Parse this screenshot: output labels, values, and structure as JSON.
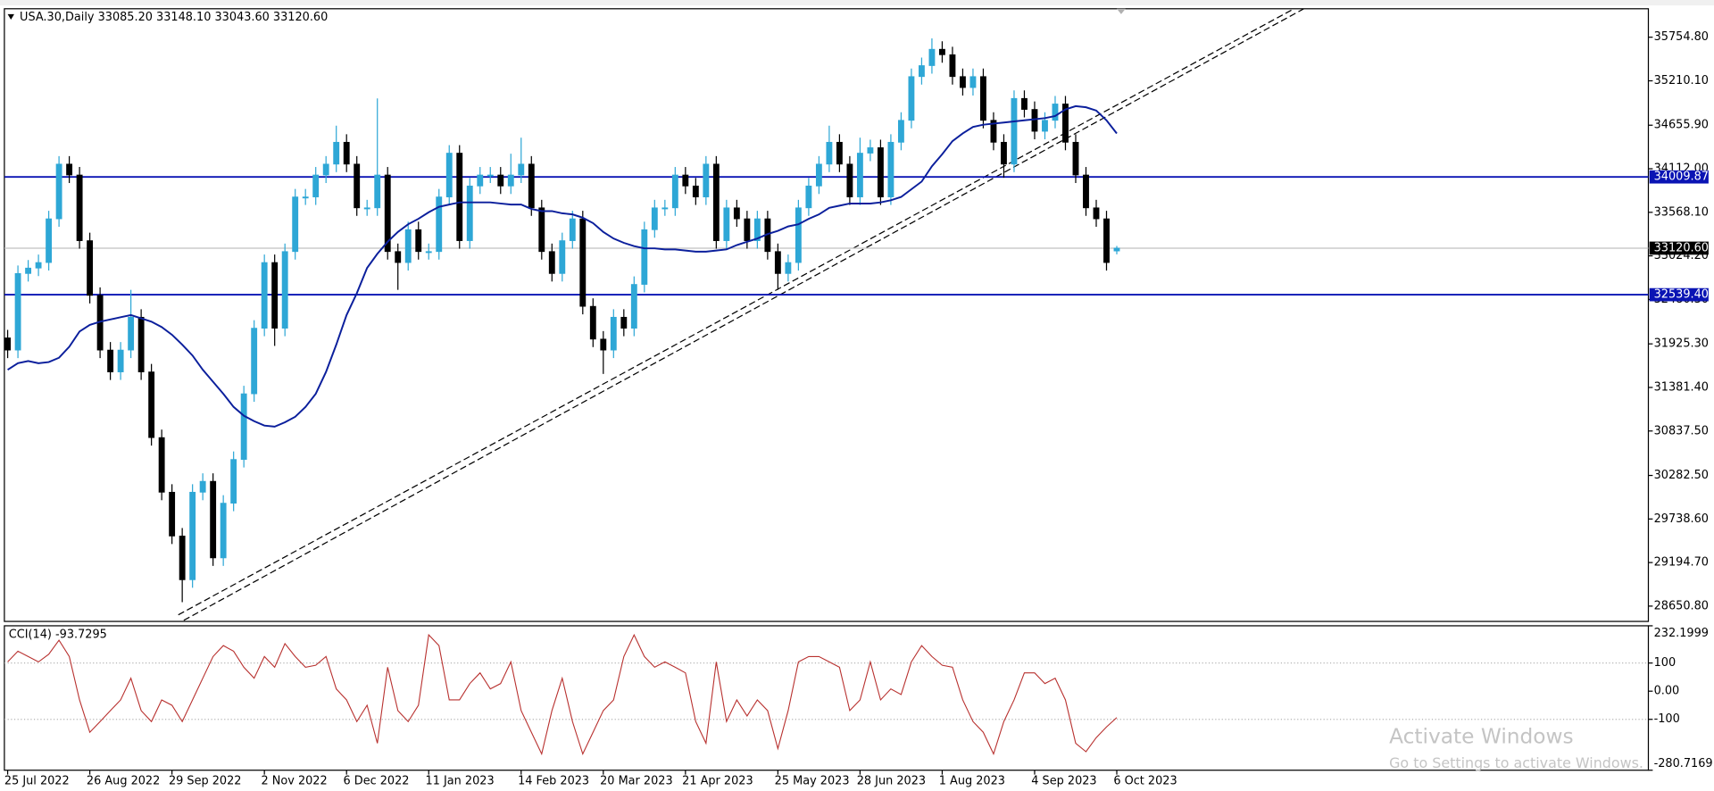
{
  "chart_data": {
    "type": "candlestick",
    "title": "USA.30,Daily  33085.20 33148.10 33043.60 33120.60",
    "open": [
      32000,
      31848,
      32804,
      32872,
      32941,
      33487,
      34170,
      34034,
      33214,
      32531,
      31848,
      31575,
      31848,
      32258,
      31575,
      30755,
      30073,
      29526,
      28980,
      30073,
      30209,
      29253,
      29936,
      30482,
      31302,
      32121,
      32941,
      32121,
      33078,
      33760,
      33760,
      34034,
      34170,
      34443,
      34170,
      33624,
      33624,
      34034,
      33078,
      32941,
      33351,
      33078,
      33078,
      33760,
      34307,
      33214,
      33897,
      34034,
      34034,
      33897,
      34034,
      34170,
      33624,
      33078,
      32804,
      33214,
      33487,
      32394,
      31985,
      31848,
      32258,
      32121,
      32668,
      33351,
      33624,
      33624,
      34034,
      33897,
      33760,
      34170,
      33214,
      33624,
      33487,
      33214,
      33487,
      33078,
      32804,
      32941,
      33624,
      33897,
      34170,
      34443,
      34170,
      33760,
      34307,
      34375,
      33760,
      34443,
      34717,
      35263,
      35400,
      35604,
      35536,
      35263,
      35126,
      35263,
      34717,
      34443,
      34170,
      34990,
      34853,
      34580,
      34717,
      34921,
      34443,
      34034,
      33624,
      33487,
      33085.2
    ],
    "high": [
      32100,
      32904,
      32972,
      33041,
      33587,
      34270,
      34270,
      34134,
      33314,
      32631,
      31948,
      31948,
      32600,
      32358,
      31675,
      30855,
      30173,
      29626,
      30173,
      30309,
      30309,
      30036,
      30582,
      31402,
      32221,
      33041,
      33041,
      33178,
      33860,
      33860,
      34134,
      34270,
      34650,
      34543,
      34270,
      33724,
      34990,
      34134,
      33178,
      33451,
      33451,
      33178,
      33860,
      34407,
      34407,
      33997,
      34134,
      34134,
      34134,
      34300,
      34500,
      34270,
      33724,
      33178,
      33314,
      33587,
      33587,
      32494,
      32085,
      32358,
      32358,
      32768,
      33451,
      33724,
      33724,
      34134,
      34134,
      33997,
      34270,
      34270,
      33724,
      33724,
      33587,
      33587,
      33587,
      33178,
      33041,
      33724,
      33997,
      34270,
      34650,
      34543,
      34270,
      34500,
      34475,
      34475,
      34543,
      34817,
      35363,
      35500,
      35740,
      35704,
      35636,
      35363,
      35363,
      35363,
      34817,
      34543,
      35090,
      35090,
      34953,
      34817,
      35021,
      35021,
      34543,
      34134,
      33724,
      33587,
      33148.1
    ],
    "low": [
      31748,
      31748,
      32704,
      32772,
      32841,
      33387,
      33934,
      33114,
      32431,
      31748,
      31475,
      31475,
      31748,
      31475,
      30655,
      29973,
      29426,
      28700,
      28880,
      29973,
      29153,
      29153,
      29836,
      30382,
      31202,
      32021,
      31900,
      32021,
      32978,
      33660,
      33660,
      33934,
      34070,
      34070,
      33524,
      33524,
      33524,
      32978,
      32600,
      32841,
      32978,
      32978,
      32978,
      33660,
      33114,
      33114,
      33797,
      33934,
      33797,
      33797,
      33934,
      33524,
      32978,
      32704,
      32704,
      33114,
      32294,
      31885,
      31550,
      31748,
      32021,
      32021,
      32568,
      33251,
      33524,
      33524,
      33797,
      33660,
      33660,
      33114,
      33114,
      33387,
      33114,
      33114,
      32978,
      32600,
      32704,
      32841,
      33524,
      33797,
      34070,
      34070,
      33660,
      33660,
      34207,
      33660,
      33660,
      34343,
      34617,
      35163,
      35300,
      35436,
      35163,
      35026,
      35026,
      34617,
      34343,
      34000,
      34070,
      34753,
      34480,
      34480,
      34617,
      34343,
      33934,
      33524,
      33387,
      32841,
      33043.6
    ],
    "close": [
      31848,
      32804,
      32872,
      32941,
      33487,
      34170,
      34034,
      33214,
      32531,
      31848,
      31575,
      31848,
      32258,
      31575,
      30755,
      30073,
      29526,
      28980,
      30073,
      30209,
      29253,
      29936,
      30482,
      31302,
      32121,
      32941,
      32121,
      33078,
      33760,
      33760,
      34034,
      34170,
      34443,
      34170,
      33624,
      33624,
      34034,
      33078,
      32941,
      33351,
      33078,
      33078,
      33760,
      34307,
      33214,
      33897,
      34034,
      34034,
      33897,
      34034,
      34170,
      33624,
      33078,
      32804,
      33214,
      33487,
      32394,
      31985,
      31848,
      32258,
      32121,
      32668,
      33351,
      33624,
      33624,
      34034,
      33897,
      33760,
      34170,
      33214,
      33624,
      33487,
      33214,
      33487,
      33078,
      32804,
      32941,
      33624,
      33897,
      34170,
      34443,
      34170,
      33760,
      34307,
      34375,
      33760,
      34443,
      34717,
      35263,
      35400,
      35604,
      35536,
      35263,
      35126,
      35263,
      34717,
      34443,
      34170,
      34990,
      34853,
      34580,
      34717,
      34921,
      34443,
      34034,
      33624,
      33487,
      32941,
      33120.6
    ],
    "up_color": "#2ea7d6",
    "down_color": "#000000",
    "moving_average": {
      "color": "#0b1f9c",
      "values": [
        31602,
        31684,
        31711,
        31684,
        31698,
        31752,
        31889,
        32080,
        32162,
        32203,
        32230,
        32258,
        32285,
        32244,
        32203,
        32135,
        32039,
        31916,
        31780,
        31602,
        31452,
        31302,
        31138,
        31028,
        30960,
        30905,
        30892,
        30946,
        31015,
        31138,
        31302,
        31575,
        31916,
        32285,
        32558,
        32873,
        33050,
        33200,
        33323,
        33419,
        33487,
        33569,
        33637,
        33665,
        33692,
        33692,
        33692,
        33692,
        33678,
        33665,
        33665,
        33610,
        33583,
        33583,
        33556,
        33542,
        33501,
        33433,
        33323,
        33241,
        33187,
        33146,
        33118,
        33118,
        33105,
        33105,
        33091,
        33077,
        33077,
        33091,
        33105,
        33159,
        33200,
        33241,
        33296,
        33337,
        33392,
        33419,
        33487,
        33542,
        33624,
        33651,
        33678,
        33678,
        33678,
        33692,
        33719,
        33760,
        33856,
        33952,
        34143,
        34293,
        34457,
        34553,
        34635,
        34662,
        34676,
        34689,
        34703,
        34717,
        34730,
        34744,
        34771,
        34853,
        34894,
        34880,
        34839,
        34717,
        34553
      ]
    },
    "ylim": [
      28459.6,
      36110
    ],
    "yticks": [
      {
        "value": 35754.8,
        "label": "35754.80"
      },
      {
        "value": 35210.1,
        "label": "35210.10"
      },
      {
        "value": 34655.9,
        "label": "34655.90"
      },
      {
        "value": 34112,
        "label": "34112.00"
      },
      {
        "value": 33568.1,
        "label": "33568.10"
      },
      {
        "value": 33024.2,
        "label": "33024.20"
      },
      {
        "value": 32480.3,
        "label": "32480.30"
      },
      {
        "value": 31925.3,
        "label": "31925.30"
      },
      {
        "value": 31381.4,
        "label": "31381.40"
      },
      {
        "value": 30837.5,
        "label": "30837.50"
      },
      {
        "value": 30282.5,
        "label": "30282.50"
      },
      {
        "value": 29738.6,
        "label": "29738.60"
      },
      {
        "value": 29194.7,
        "label": "29194.70"
      },
      {
        "value": 28650.8,
        "label": "28650.80"
      }
    ],
    "xticks": [
      {
        "value": 0,
        "label": "25 Jul 2022"
      },
      {
        "value": 8,
        "label": "26 Aug 2022"
      },
      {
        "value": 16,
        "label": "29 Sep 2022"
      },
      {
        "value": 25,
        "label": "2 Nov 2022"
      },
      {
        "value": 33,
        "label": "6 Dec 2022"
      },
      {
        "value": 41,
        "label": "11 Jan 2023"
      },
      {
        "value": 50,
        "label": "14 Feb 2023"
      },
      {
        "value": 58,
        "label": "20 Mar 2023"
      },
      {
        "value": 66,
        "label": "21 Apr 2023"
      },
      {
        "value": 75,
        "label": "25 May 2023"
      },
      {
        "value": 83,
        "label": "28 Jun 2023"
      },
      {
        "value": 91,
        "label": "1 Aug 2023"
      },
      {
        "value": 100,
        "label": "4 Sep 2023"
      },
      {
        "value": 108,
        "label": "6 Oct 2023"
      }
    ],
    "levels": [
      {
        "value": 34009.87,
        "label": "34009.87",
        "color": "#0a14b4"
      },
      {
        "value": 32539.4,
        "label": "32539.40",
        "color": "#0a14b4"
      }
    ],
    "current_price": {
      "value": 33120.6,
      "label": "33120.60",
      "color": "#c0c0c0"
    },
    "indicator": {
      "type": "line",
      "title": "CCI(14) -93.7295",
      "color": "#b8312f",
      "values": [
        104,
        142,
        123,
        104,
        131,
        181,
        123,
        -31,
        -146,
        -108,
        -69,
        -31,
        46,
        -69,
        -108,
        -31,
        -50,
        -108,
        -31,
        46,
        123,
        162,
        142,
        85,
        46,
        123,
        85,
        169,
        123,
        85,
        92,
        123,
        8,
        -31,
        -108,
        -50,
        -185,
        85,
        -69,
        -108,
        -50,
        200,
        162,
        -31,
        -31,
        27,
        65,
        8,
        27,
        104,
        -69,
        -146,
        -223,
        -69,
        46,
        -108,
        -223,
        -146,
        -69,
        -31,
        123,
        200,
        123,
        85,
        104,
        85,
        65,
        -108,
        -185,
        104,
        -108,
        -31,
        -88,
        -31,
        -69,
        -204,
        -69,
        104,
        123,
        123,
        104,
        85,
        -69,
        -31,
        104,
        -31,
        8,
        -12,
        104,
        162,
        123,
        92,
        85,
        -31,
        -108,
        -146,
        -223,
        -108,
        -31,
        65,
        65,
        27,
        46,
        -31,
        -185,
        -215,
        -165,
        -127,
        -93.7295
      ],
      "ylim": [
        -280.7169,
        232.1999
      ],
      "yticks": [
        232.1999,
        100,
        {
          "value": 0,
          "label": "0.00"
        },
        -100,
        -280.7169
      ],
      "levels": [
        100,
        -100
      ]
    }
  },
  "watermark": {
    "title": "Activate Windows",
    "subtitle": "Go to Settings to activate Windows."
  }
}
